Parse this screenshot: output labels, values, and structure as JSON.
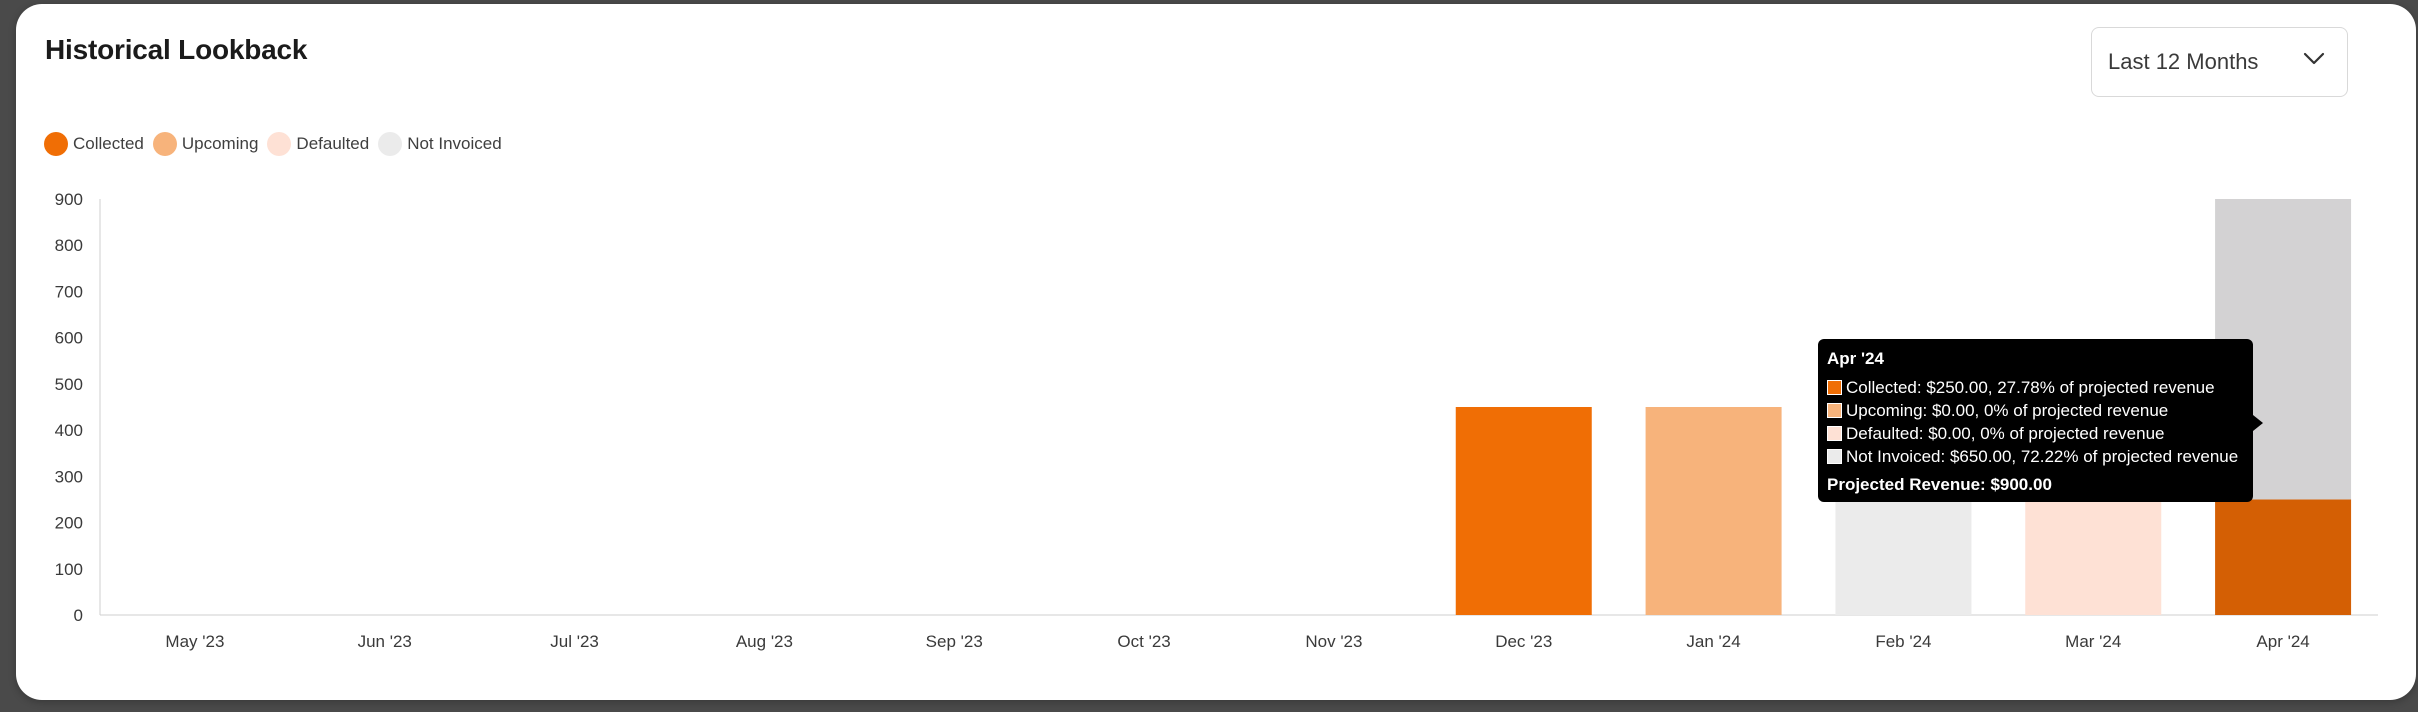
{
  "card": {
    "title": "Historical Lookback"
  },
  "range_select": {
    "value": "Last 12 Months",
    "icon": "chevron-down-icon"
  },
  "colors": {
    "collected": "#F06E05",
    "collected_highlight": "#D45F04",
    "upcoming": "#F7B37B",
    "defaulted": "#FEE1D5",
    "not_invoiced": "#EBEBEB",
    "not_invoiced_highlight": "#D3D2D3"
  },
  "legend": [
    {
      "key": "collected",
      "label": "Collected"
    },
    {
      "key": "upcoming",
      "label": "Upcoming"
    },
    {
      "key": "defaulted",
      "label": "Defaulted"
    },
    {
      "key": "not_invoiced",
      "label": "Not Invoiced"
    }
  ],
  "chart_data": {
    "type": "bar",
    "stacked": true,
    "categories": [
      "May '23",
      "Jun '23",
      "Jul '23",
      "Aug '23",
      "Sep '23",
      "Oct '23",
      "Nov '23",
      "Dec '23",
      "Jan '24",
      "Feb '24",
      "Mar '24",
      "Apr '24"
    ],
    "series": [
      {
        "name": "Collected",
        "key": "collected",
        "values": [
          0,
          0,
          0,
          0,
          0,
          0,
          0,
          450,
          0,
          0,
          0,
          250
        ]
      },
      {
        "name": "Upcoming",
        "key": "upcoming",
        "values": [
          0,
          0,
          0,
          0,
          0,
          0,
          0,
          0,
          450,
          0,
          0,
          0
        ]
      },
      {
        "name": "Defaulted",
        "key": "defaulted",
        "values": [
          0,
          0,
          0,
          0,
          0,
          0,
          0,
          0,
          0,
          0,
          250,
          0
        ]
      },
      {
        "name": "Not Invoiced",
        "key": "not_invoiced",
        "values": [
          0,
          0,
          0,
          0,
          0,
          0,
          0,
          0,
          0,
          250,
          0,
          650
        ]
      }
    ],
    "ylim": [
      0,
      900
    ],
    "yticks": [
      0,
      100,
      200,
      300,
      400,
      500,
      600,
      700,
      800,
      900
    ],
    "highlighted_category": "Apr '24",
    "grid": false,
    "legend_position": "top-left"
  },
  "tooltip": {
    "title": "Apr '24",
    "rows": [
      {
        "key": "collected",
        "text": "Collected: $250.00, 27.78% of projected revenue"
      },
      {
        "key": "upcoming",
        "text": "Upcoming: $0.00, 0% of projected revenue"
      },
      {
        "key": "defaulted",
        "text": "Defaulted: $0.00, 0% of projected revenue"
      },
      {
        "key": "not_invoiced",
        "text": "Not Invoiced: $650.00, 72.22% of projected revenue"
      }
    ],
    "total": "Projected Revenue: $900.00"
  }
}
